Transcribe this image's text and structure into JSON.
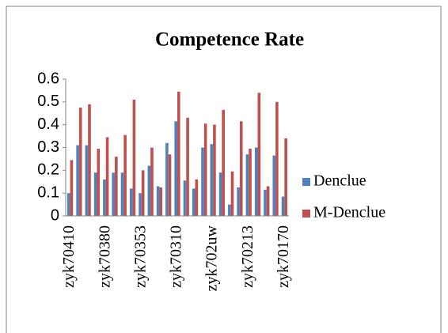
{
  "chart_data": {
    "type": "bar",
    "title": "Competence Rate",
    "categories": [
      "zyk70410",
      null,
      null,
      null,
      "zyk70380",
      null,
      null,
      null,
      "zyk70353",
      null,
      null,
      null,
      "zyk70310",
      null,
      null,
      null,
      "zyk702uw",
      null,
      null,
      null,
      "zyk70213",
      null,
      null,
      null,
      "zyk70170"
    ],
    "series": [
      {
        "name": "Denclue",
        "color": "#4f81bd",
        "values": [
          0.1,
          0.31,
          0.31,
          0.19,
          0.16,
          0.19,
          0.19,
          0.12,
          0.1,
          0.22,
          0.13,
          0.32,
          0.415,
          0.155,
          0.12,
          0.3,
          0.315,
          0.19,
          0.05,
          0.125,
          0.27,
          0.3,
          0.115,
          0.265,
          0.085
        ]
      },
      {
        "name": "M-Denclue",
        "color": "#c0504d",
        "values": [
          0.245,
          0.475,
          0.49,
          0.295,
          0.345,
          0.26,
          0.355,
          0.51,
          0.2,
          0.3,
          0.125,
          0.27,
          0.545,
          0.43,
          0.16,
          0.405,
          0.4,
          0.465,
          0.195,
          0.415,
          0.295,
          0.54,
          0.13,
          0.5,
          0.34
        ]
      }
    ],
    "ylim": [
      0,
      0.6
    ],
    "yticks": [
      0,
      0.1,
      0.2,
      0.3,
      0.4,
      0.5,
      0.6
    ],
    "legend": "right"
  }
}
